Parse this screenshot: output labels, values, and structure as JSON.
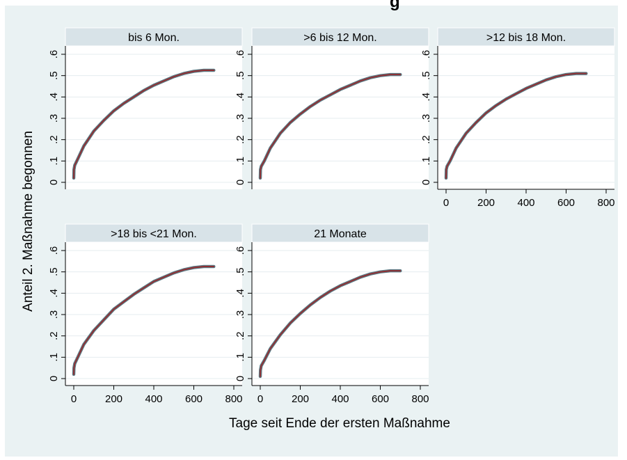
{
  "page": {
    "title_fragment": "g"
  },
  "chart_data": {
    "type": "line",
    "ylabel": "Anteil 2. Maßnahme begonnen",
    "xlabel": "Tage seit Ende der ersten Maßnahme",
    "xlim": [
      0,
      800
    ],
    "ylim": [
      0,
      0.6
    ],
    "xticks": [
      0,
      200,
      400,
      600,
      800
    ],
    "xtick_labels": [
      "0",
      "200",
      "400",
      "600",
      "800"
    ],
    "yticks": [
      0,
      0.1,
      0.2,
      0.3,
      0.4,
      0.5,
      0.6
    ],
    "ytick_labels": [
      "0",
      ".1",
      ".2",
      ".3",
      ".4",
      ".5",
      ".6"
    ],
    "grid": true,
    "colors": {
      "background": "#eaf2f3",
      "plot_background": "#ffffff",
      "strip": "#d8e3e8",
      "line_main": "#8f2f33",
      "line_band": "#5b7b85",
      "grid": "#e4ecef"
    },
    "panels": [
      {
        "title": "bis 6 Mon.",
        "x": [
          0,
          1,
          5,
          20,
          50,
          100,
          150,
          200,
          250,
          300,
          350,
          400,
          450,
          500,
          550,
          600,
          650,
          700
        ],
        "y": [
          0.02,
          0.06,
          0.08,
          0.11,
          0.17,
          0.24,
          0.29,
          0.335,
          0.37,
          0.4,
          0.43,
          0.455,
          0.475,
          0.495,
          0.51,
          0.52,
          0.525,
          0.525
        ]
      },
      {
        "title": ">6 bis 12 Mon.",
        "x": [
          0,
          1,
          5,
          20,
          50,
          100,
          150,
          200,
          250,
          300,
          350,
          400,
          450,
          500,
          550,
          600,
          650,
          700
        ],
        "y": [
          0.02,
          0.06,
          0.075,
          0.1,
          0.16,
          0.23,
          0.28,
          0.32,
          0.355,
          0.385,
          0.41,
          0.435,
          0.455,
          0.475,
          0.49,
          0.5,
          0.505,
          0.505
        ]
      },
      {
        "title": ">12 bis 18 Mon.",
        "x": [
          0,
          1,
          5,
          20,
          50,
          100,
          150,
          200,
          250,
          300,
          350,
          400,
          450,
          500,
          550,
          600,
          650,
          700
        ],
        "y": [
          0.02,
          0.06,
          0.075,
          0.1,
          0.16,
          0.23,
          0.28,
          0.325,
          0.36,
          0.39,
          0.415,
          0.44,
          0.46,
          0.48,
          0.495,
          0.505,
          0.51,
          0.51
        ]
      },
      {
        "title": ">18 bis <21 Mon.",
        "x": [
          0,
          1,
          5,
          20,
          50,
          100,
          150,
          200,
          250,
          300,
          350,
          400,
          450,
          500,
          550,
          600,
          650,
          700
        ],
        "y": [
          0.02,
          0.05,
          0.07,
          0.1,
          0.16,
          0.225,
          0.275,
          0.325,
          0.36,
          0.395,
          0.425,
          0.455,
          0.475,
          0.495,
          0.51,
          0.52,
          0.525,
          0.525
        ]
      },
      {
        "title": "21 Monate",
        "x": [
          0,
          1,
          5,
          20,
          50,
          100,
          150,
          200,
          250,
          300,
          350,
          400,
          450,
          500,
          550,
          600,
          650,
          700
        ],
        "y": [
          0.01,
          0.04,
          0.06,
          0.085,
          0.14,
          0.205,
          0.26,
          0.305,
          0.345,
          0.38,
          0.41,
          0.435,
          0.455,
          0.475,
          0.49,
          0.5,
          0.505,
          0.505
        ]
      }
    ]
  }
}
